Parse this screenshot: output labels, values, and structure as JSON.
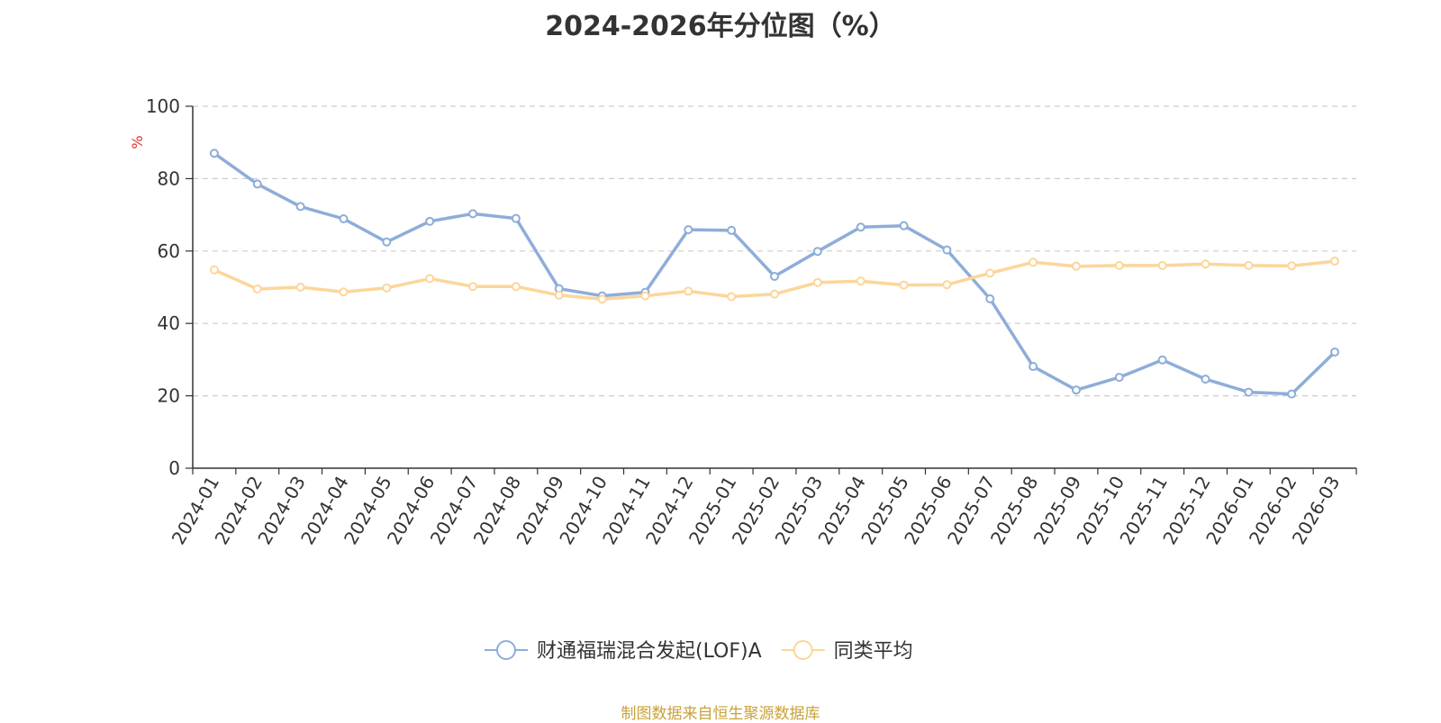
{
  "chart_data": {
    "type": "line",
    "title": "2024-2026年分位图（%）",
    "ylabel": "%",
    "ylim": [
      0,
      100
    ],
    "yticks": [
      0,
      20,
      40,
      60,
      80,
      100
    ],
    "grid": true,
    "legend_position": "bottom",
    "categories": [
      "2024-01",
      "2024-02",
      "2024-03",
      "2024-04",
      "2024-05",
      "2024-06",
      "2024-07",
      "2024-08",
      "2024-09",
      "2024-10",
      "2024-11",
      "2024-12",
      "2025-01",
      "2025-02",
      "2025-03",
      "2025-04",
      "2025-05",
      "2025-06",
      "2025-07",
      "2025-08",
      "2025-09",
      "2025-10",
      "2025-11",
      "2025-12",
      "2026-01",
      "2026-02",
      "2026-03"
    ],
    "series": [
      {
        "name": "财通福瑞混合发起(LOF)A",
        "color": "#8eadd9",
        "values": [
          87.0,
          78.5,
          72.3,
          68.9,
          62.5,
          68.2,
          70.3,
          69.0,
          49.6,
          47.6,
          48.6,
          65.9,
          65.7,
          53.0,
          59.9,
          66.6,
          67.0,
          60.3,
          46.8,
          28.1,
          21.6,
          25.1,
          29.9,
          24.6,
          21.0,
          20.5,
          32.1
        ]
      },
      {
        "name": "同类平均",
        "color": "#fcd699",
        "values": [
          54.8,
          49.5,
          50.0,
          48.7,
          49.8,
          52.4,
          50.2,
          50.2,
          47.8,
          46.7,
          47.6,
          48.9,
          47.4,
          48.1,
          51.3,
          51.7,
          50.6,
          50.7,
          53.9,
          56.9,
          55.8,
          56.0,
          56.0,
          56.4,
          56.0,
          55.9,
          57.2
        ]
      }
    ]
  },
  "source_note": "制图数据来自恒生聚源数据库"
}
